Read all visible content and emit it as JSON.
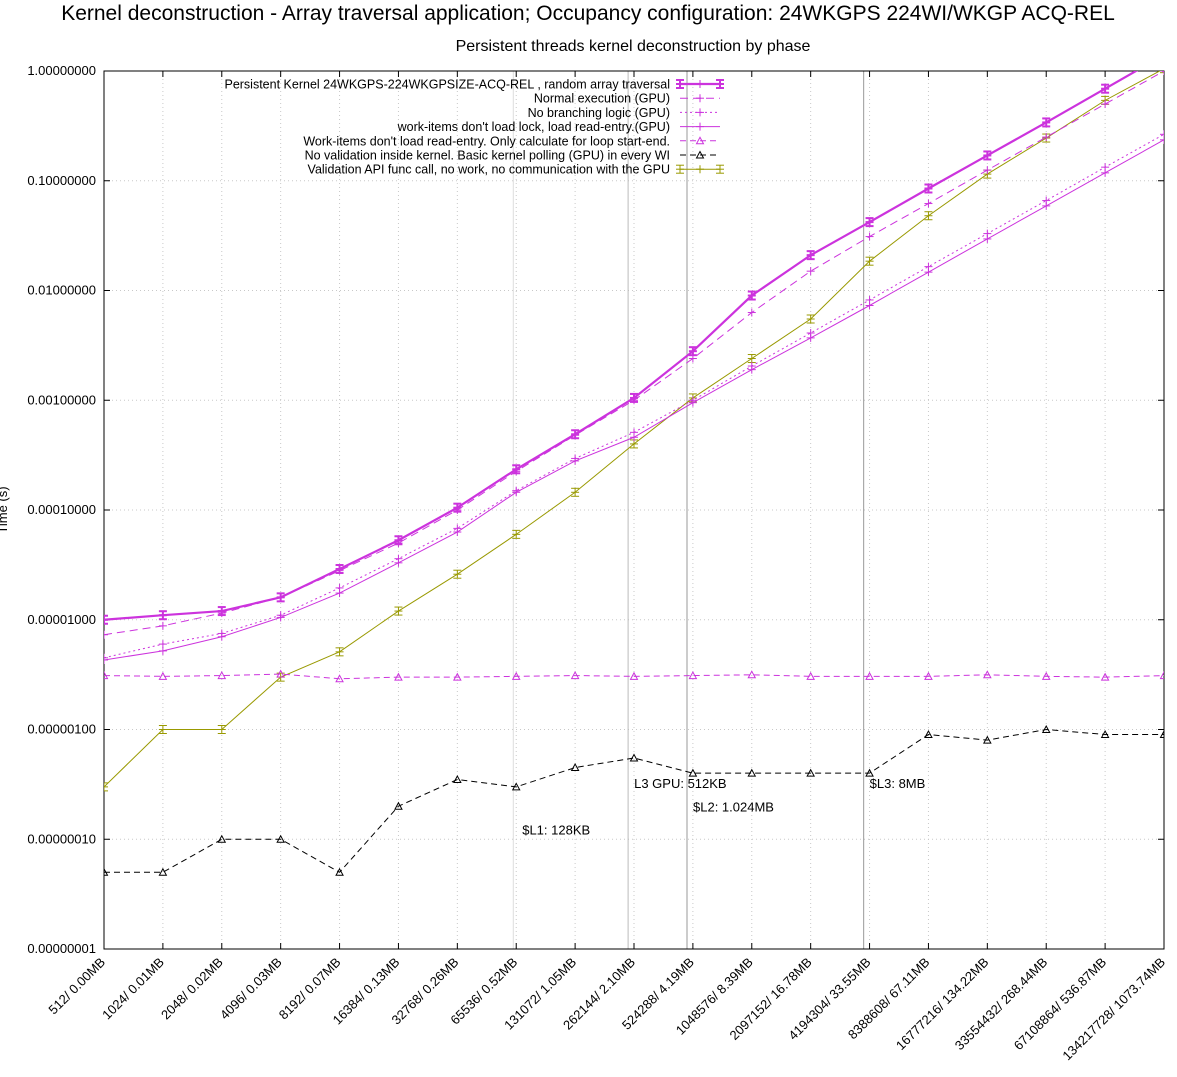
{
  "chart_data": {
    "type": "line",
    "title": "Kernel deconstruction - Array traversal application; Occupancy configuration: 24WKGPS 224WI/WKGP ACQ-REL",
    "subtitle": "Persistent threads kernel deconstruction by phase",
    "ylabel": "Time (s)",
    "xlabel": "",
    "y_scale": "log",
    "ylim": [
      1e-08,
      1
    ],
    "y_ticks": [
      "0.00000001",
      "0.00000010",
      "0.00000100",
      "0.00001000",
      "0.00010000",
      "0.00100000",
      "0.01000000",
      "0.10000000",
      "1.00000000"
    ],
    "categories": [
      "512/ 0.00MB",
      "1024/ 0.01MB",
      "2048/ 0.02MB",
      "4096/ 0.03MB",
      "8192/ 0.07MB",
      "16384/ 0.13MB",
      "32768/ 0.26MB",
      "65536/ 0.52MB",
      "131072/ 1.05MB",
      "262144/ 2.10MB",
      "524288/ 4.19MB",
      "1048576/ 8.39MB",
      "2097152/ 16.78MB",
      "4194304/ 33.55MB",
      "8388608/ 67.11MB",
      "16777216/ 134.22MB",
      "33554432/ 268.44MB",
      "67108864/ 536.87MB",
      "134217728/ 1073.74MB"
    ],
    "legend_position": "top-left",
    "grid": true,
    "series": [
      {
        "name": "Persistent Kernel 24WKGPS-224WKGPSIZE-ACQ-REL , random array traversal",
        "color": "#cc33dd",
        "style": "thick-errorbar",
        "values": [
          1e-05,
          1.1e-05,
          1.2e-05,
          1.6e-05,
          2.9e-05,
          5.3e-05,
          0.000105,
          0.000235,
          0.00049,
          0.00105,
          0.0028,
          0.009,
          0.021,
          0.042,
          0.085,
          0.17,
          0.34,
          0.69,
          1.4
        ]
      },
      {
        "name": "Normal execution (GPU)",
        "color": "#cc33dd",
        "style": "dashed-plus",
        "values": [
          7.3e-06,
          8.8e-06,
          1.15e-05,
          1.6e-05,
          2.8e-05,
          5e-05,
          0.0001,
          0.000225,
          0.00048,
          0.001,
          0.0024,
          0.0063,
          0.015,
          0.031,
          0.062,
          0.125,
          0.25,
          0.5,
          1.0
        ]
      },
      {
        "name": "No branching logic (GPU)",
        "color": "#cc33dd",
        "style": "dotted-plus",
        "values": [
          4.5e-06,
          6e-06,
          7.5e-06,
          1.1e-05,
          1.95e-05,
          3.6e-05,
          6.8e-05,
          0.00015,
          0.000295,
          0.00051,
          0.001,
          0.00205,
          0.0041,
          0.0082,
          0.0165,
          0.033,
          0.066,
          0.133,
          0.265
        ]
      },
      {
        "name": "work-items don't load lock, load read-entry.(GPU)",
        "color": "#cc33dd",
        "style": "solid-thin-plus",
        "values": [
          4.3e-06,
          5.2e-06,
          7e-06,
          1.05e-05,
          1.75e-05,
          3.3e-05,
          6.3e-05,
          0.000145,
          0.00028,
          0.00046,
          0.00095,
          0.0019,
          0.0037,
          0.0073,
          0.0147,
          0.0295,
          0.059,
          0.118,
          0.236
        ]
      },
      {
        "name": "Work-items don't load read-entry. Only calculate for loop start-end.",
        "color": "#cc33dd",
        "style": "dashed-triangle",
        "values": [
          3.1e-06,
          3.05e-06,
          3.1e-06,
          3.2e-06,
          2.9e-06,
          3e-06,
          3e-06,
          3.05e-06,
          3.1e-06,
          3.05e-06,
          3.1e-06,
          3.15e-06,
          3.05e-06,
          3.05e-06,
          3.05e-06,
          3.15e-06,
          3.05e-06,
          3e-06,
          3.1e-06
        ]
      },
      {
        "name": "No validation inside kernel. Basic kernel polling (GPU) in every WI",
        "color": "#000000",
        "style": "dashed-triangle",
        "values": [
          5e-08,
          5e-08,
          1e-07,
          1e-07,
          5e-08,
          2e-07,
          3.5e-07,
          3e-07,
          4.5e-07,
          5.5e-07,
          4e-07,
          4e-07,
          4e-07,
          4e-07,
          9e-07,
          8e-07,
          1e-06,
          9e-07,
          9e-07
        ]
      },
      {
        "name": "Validation API func call, no work, no communication with the GPU",
        "color": "#999900",
        "style": "solid-errorbar",
        "values": [
          3e-07,
          1e-06,
          1e-06,
          3e-06,
          5.1e-06,
          1.2e-05,
          2.6e-05,
          6e-05,
          0.000145,
          0.0004,
          0.00105,
          0.0024,
          0.0055,
          0.0185,
          0.048,
          0.115,
          0.245,
          0.54,
          1.05
        ]
      }
    ],
    "annotations": [
      {
        "text": "$L1: 128KB",
        "x_index": 7.0,
        "y": 1.2e-07
      },
      {
        "text": "L3 GPU: 512KB",
        "x_index": 8.9,
        "y": 3.2e-07
      },
      {
        "text": "$L2: 1.024MB",
        "x_index": 9.9,
        "y": 1.95e-07
      },
      {
        "text": "$L3: 8MB",
        "x_index": 12.9,
        "y": 3.2e-07
      }
    ],
    "vertical_markers": [
      {
        "x_index": 6.95,
        "color": "#dddddd"
      },
      {
        "x_index": 8.9,
        "color": "#bbbbbb"
      },
      {
        "x_index": 9.9,
        "color": "#999999"
      },
      {
        "x_index": 12.9,
        "color": "#999999"
      }
    ]
  }
}
